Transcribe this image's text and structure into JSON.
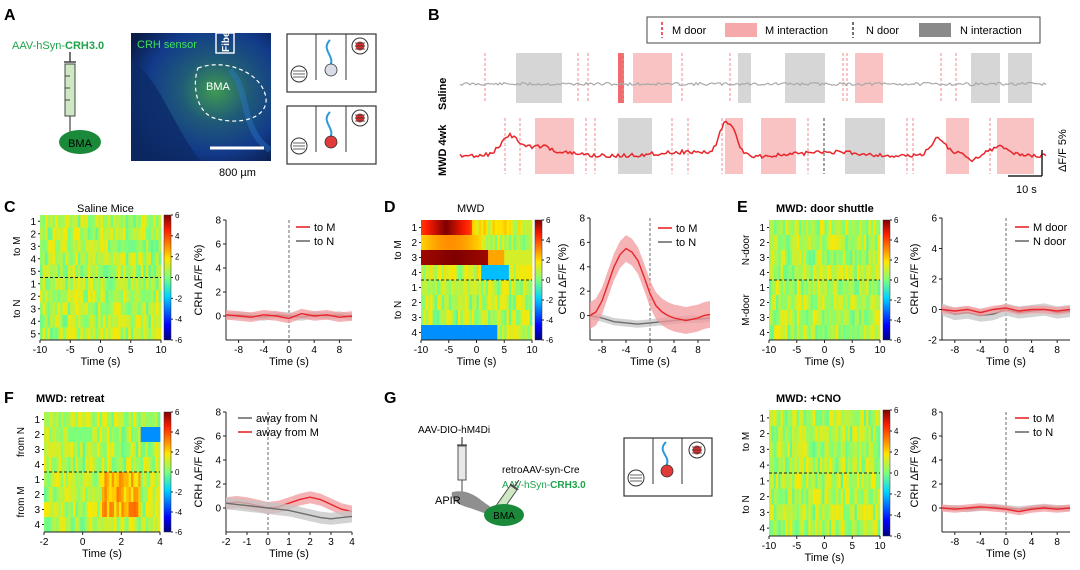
{
  "figure": {
    "panel_labels": [
      "A",
      "B",
      "C",
      "D",
      "E",
      "F",
      "G"
    ],
    "colors": {
      "m_red": "#e8262b",
      "m_fill": "#f6a9ab",
      "n_gray": "#6d6d6d",
      "n_fill": "#c4c4c4",
      "green": "#1fa34a"
    }
  },
  "panel_a": {
    "virus": "AAV-hSyn-",
    "virus_bold": "CRH3.0",
    "target": "BMA",
    "sensor_label": "CRH sensor",
    "fiber_label": "Fiber",
    "region_label": "BMA",
    "scalebar": "800 µm"
  },
  "panel_b": {
    "legend": [
      "M door",
      "M interaction",
      "N door",
      "N interaction"
    ],
    "row_labels": [
      "Saline",
      "MWD 4wk"
    ],
    "ylabel": "ΔF/F 5%",
    "scalebar": "10 s"
  },
  "panel_c": {
    "title": "Saline Mice",
    "group_labels": [
      "to M",
      "to N"
    ],
    "trial_labels": [
      "1",
      "2",
      "3",
      "4",
      "5",
      "1",
      "2",
      "3",
      "4",
      "5"
    ],
    "x_ticks": [
      "-10",
      "-5",
      "0",
      "5",
      "10"
    ],
    "xlabel": "Time (s)",
    "colorbar_ticks": [
      "6",
      "4",
      "2",
      "0",
      "-2",
      "-4",
      "-6"
    ]
  },
  "panel_d": {
    "title": "MWD",
    "group_labels": [
      "to M",
      "to N"
    ],
    "trial_labels": [
      "1",
      "2",
      "3",
      "4",
      "1",
      "2",
      "3",
      "4"
    ],
    "x_ticks": [
      "-10",
      "-5",
      "0",
      "5",
      "10"
    ],
    "xlabel": "Time (s)",
    "colorbar_ticks": [
      "6",
      "4",
      "2",
      "0",
      "-2",
      "-4",
      "-6"
    ]
  },
  "panel_e": {
    "title": "MWD: door shuttle",
    "group_labels": [
      "N-door",
      "M-door"
    ],
    "trial_labels": [
      "1",
      "2",
      "3",
      "4",
      "1",
      "2",
      "3",
      "4"
    ],
    "x_ticks": [
      "-10",
      "-5",
      "0",
      "5",
      "10"
    ],
    "xlabel": "Time (s)",
    "colorbar_ticks": [
      "6",
      "4",
      "2",
      "0",
      "-2",
      "-4",
      "-6"
    ]
  },
  "panel_f": {
    "title": "MWD: retreat",
    "group_labels": [
      "from N",
      "from M"
    ],
    "trial_labels": [
      "1",
      "2",
      "3",
      "4",
      "1",
      "2",
      "3",
      "4"
    ],
    "x_ticks": [
      "-2",
      "0",
      "2",
      "4"
    ],
    "xlabel": "Time (s)",
    "colorbar_ticks": [
      "6",
      "4",
      "2",
      "0",
      "-2",
      "-4",
      "-6"
    ]
  },
  "panel_g": {
    "virus1": "AAV-DIO-hM4Di",
    "virus2": "retroAAV-syn-Cre",
    "virus3": "AAV-hSyn-",
    "virus3_bold": "CRH3.0",
    "region1": "APIR",
    "region2": "BMA",
    "heatmap_title": "MWD: +CNO",
    "group_labels": [
      "to M",
      "to N"
    ],
    "trial_labels": [
      "1",
      "2",
      "3",
      "4",
      "1",
      "2",
      "3",
      "4"
    ],
    "x_ticks": [
      "-10",
      "-5",
      "0",
      "5",
      "10"
    ],
    "xlabel": "Time (s)",
    "colorbar_ticks": [
      "6",
      "4",
      "2",
      "0",
      "-2",
      "-4",
      "-6"
    ]
  },
  "chart_data": [
    {
      "id": "C_trace",
      "type": "line",
      "title": "",
      "xlabel": "Time (s)",
      "ylabel": "CRH ΔF/F (%)",
      "xlim": [
        -10,
        10
      ],
      "ylim": [
        -2,
        8
      ],
      "x_ticks": [
        -8,
        -4,
        0,
        4,
        8
      ],
      "y_ticks": [
        0,
        2,
        4,
        6,
        8
      ],
      "legend": [
        "to M",
        "to N"
      ],
      "series": [
        {
          "name": "to M",
          "color": "#e8262b",
          "x": [
            -10,
            -8,
            -6,
            -4,
            -2,
            0,
            2,
            4,
            6,
            8,
            10
          ],
          "y": [
            0.1,
            0.0,
            -0.1,
            0.1,
            0.0,
            -0.2,
            0.2,
            0.0,
            0.1,
            -0.1,
            0.0
          ],
          "sem": 0.4
        },
        {
          "name": "to N",
          "color": "#6d6d6d",
          "x": [
            -10,
            -8,
            -6,
            -4,
            -2,
            0,
            2,
            4,
            6,
            8,
            10
          ],
          "y": [
            0.0,
            0.1,
            0.0,
            -0.1,
            0.1,
            0.0,
            -0.1,
            0.1,
            0.0,
            0.1,
            -0.1
          ],
          "sem": 0.3
        }
      ]
    },
    {
      "id": "D_trace",
      "type": "line",
      "xlabel": "Time (s)",
      "ylabel": "CRH ΔF/F (%)",
      "xlim": [
        -10,
        10
      ],
      "ylim": [
        -2,
        8
      ],
      "x_ticks": [
        -8,
        -4,
        0,
        4,
        8
      ],
      "y_ticks": [
        0,
        2,
        4,
        6,
        8
      ],
      "legend": [
        "to M",
        "to N"
      ],
      "series": [
        {
          "name": "to M",
          "color": "#e8262b",
          "x": [
            -10,
            -9,
            -8,
            -7,
            -6,
            -5,
            -4,
            -3,
            -2,
            -1,
            0,
            1,
            2,
            3,
            4,
            5,
            6,
            7,
            8,
            9,
            10
          ],
          "y": [
            0.0,
            0.3,
            1.2,
            2.6,
            4.0,
            5.0,
            5.5,
            5.2,
            4.5,
            3.2,
            1.8,
            0.8,
            0.3,
            0.0,
            -0.2,
            -0.3,
            -0.4,
            -0.3,
            -0.2,
            0.0,
            0.1
          ],
          "sem": 1.1
        },
        {
          "name": "to N",
          "color": "#6d6d6d",
          "x": [
            -10,
            -8,
            -6,
            -4,
            -2,
            0,
            2,
            4,
            6,
            8,
            10
          ],
          "y": [
            0.0,
            -0.2,
            -0.5,
            -0.6,
            -0.7,
            -0.6,
            -0.5,
            -0.4,
            -0.3,
            -0.3,
            -0.2
          ],
          "sem": 0.3
        }
      ]
    },
    {
      "id": "E_trace",
      "type": "line",
      "xlabel": "Time (s)",
      "ylabel": "CRH ΔF/F (%)",
      "xlim": [
        -10,
        10
      ],
      "ylim": [
        -2,
        6
      ],
      "x_ticks": [
        -8,
        -4,
        0,
        4,
        8
      ],
      "y_ticks": [
        -2,
        0,
        2,
        4,
        6
      ],
      "legend": [
        "M door",
        "N door"
      ],
      "series": [
        {
          "name": "M door",
          "color": "#e8262b",
          "x": [
            -10,
            -8,
            -6,
            -4,
            -2,
            0,
            2,
            4,
            6,
            8,
            10
          ],
          "y": [
            0.0,
            -0.1,
            0.0,
            -0.2,
            0.0,
            0.1,
            -0.1,
            0.0,
            0.0,
            -0.1,
            0.0
          ],
          "sem": 0.25
        },
        {
          "name": "N door",
          "color": "#6d6d6d",
          "x": [
            -10,
            -8,
            -6,
            -4,
            -2,
            0,
            2,
            4,
            6,
            8,
            10
          ],
          "y": [
            0.0,
            -0.3,
            -0.2,
            -0.4,
            -0.3,
            0.0,
            -0.2,
            -0.1,
            0.0,
            -0.2,
            -0.1
          ],
          "sem": 0.4
        }
      ]
    },
    {
      "id": "F_trace",
      "type": "line",
      "xlabel": "Time (s)",
      "ylabel": "CRH ΔF/F (%)",
      "xlim": [
        -2,
        4
      ],
      "ylim": [
        -2,
        8
      ],
      "x_ticks": [
        -2,
        -1,
        0,
        1,
        2,
        3,
        4
      ],
      "y_ticks": [
        0,
        2,
        4,
        6,
        8
      ],
      "legend": [
        "away from N",
        "away from M"
      ],
      "series": [
        {
          "name": "away from N",
          "color": "#6d6d6d",
          "x": [
            -2,
            -1.5,
            -1,
            -0.5,
            0,
            0.5,
            1,
            1.5,
            2,
            2.5,
            3,
            3.5,
            4
          ],
          "y": [
            0.4,
            0.3,
            0.2,
            0.1,
            0.0,
            -0.1,
            -0.2,
            -0.4,
            -0.6,
            -0.8,
            -0.9,
            -0.8,
            -0.7
          ],
          "sem": 0.5
        },
        {
          "name": "away from M",
          "color": "#e8262b",
          "x": [
            -2,
            -1.5,
            -1,
            -0.5,
            0,
            0.5,
            1,
            1.5,
            2,
            2.5,
            3,
            3.5,
            4
          ],
          "y": [
            0.4,
            0.5,
            0.4,
            0.2,
            0.0,
            0.1,
            0.4,
            0.7,
            0.9,
            0.7,
            0.3,
            -0.1,
            -0.3
          ],
          "sem": 0.5
        }
      ]
    },
    {
      "id": "G_trace",
      "type": "line",
      "xlabel": "Time (s)",
      "ylabel": "CRH ΔF/F (%)",
      "xlim": [
        -10,
        10
      ],
      "ylim": [
        -2,
        8
      ],
      "x_ticks": [
        -8,
        -4,
        0,
        4,
        8
      ],
      "y_ticks": [
        0,
        2,
        4,
        6,
        8
      ],
      "legend": [
        "to M",
        "to N"
      ],
      "series": [
        {
          "name": "to M",
          "color": "#e8262b",
          "x": [
            -10,
            -8,
            -6,
            -4,
            -2,
            0,
            2,
            4,
            6,
            8,
            10
          ],
          "y": [
            0.0,
            -0.1,
            0.0,
            0.1,
            0.0,
            -0.1,
            -0.3,
            -0.1,
            0.0,
            -0.1,
            0.0
          ],
          "sem": 0.3
        },
        {
          "name": "to N",
          "color": "#6d6d6d",
          "x": [
            -10,
            -8,
            -6,
            -4,
            -2,
            0,
            2,
            4,
            6,
            8,
            10
          ],
          "y": [
            0.0,
            0.0,
            -0.1,
            0.0,
            0.1,
            0.0,
            -0.1,
            0.0,
            0.1,
            0.0,
            0.0
          ],
          "sem": 0.25
        }
      ]
    }
  ]
}
